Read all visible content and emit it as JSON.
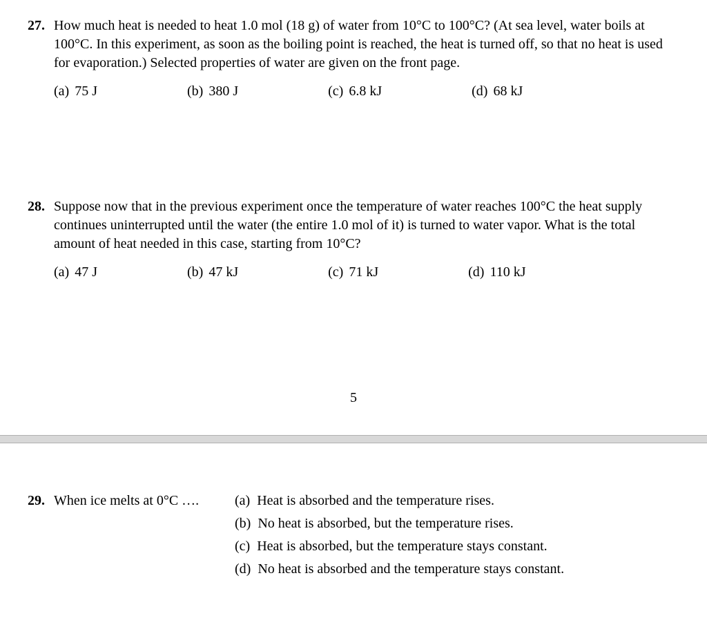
{
  "q27": {
    "number": "27.",
    "text": "How much heat is needed to heat 1.0 mol (18 g) of water from 10°C to 100°C? (At sea level, water boils at 100°C. In this experiment, as soon as the boiling point is reached, the heat is turned off, so that no heat is used for evaporation.) Selected properties of water are given on the front page.",
    "choices": {
      "a_label": "(a)",
      "a_text": "75 J",
      "b_label": "(b)",
      "b_text": "380 J",
      "c_label": "(c)",
      "c_text": "6.8 kJ",
      "d_label": "(d)",
      "d_text": "68 kJ"
    }
  },
  "q28": {
    "number": "28.",
    "text": "Suppose now that in the previous experiment once the temperature of water reaches 100°C the heat supply continues uninterrupted until the water (the entire 1.0 mol of it) is turned to water vapor. What is the total amount of heat needed in this case, starting from 10°C?",
    "choices": {
      "a_label": "(a)",
      "a_text": "47 J",
      "b_label": "(b)",
      "b_text": "47 kJ",
      "c_label": "(c)",
      "c_text": "71 kJ",
      "d_label": "(d)",
      "d_text": "110 kJ"
    }
  },
  "page_number": "5",
  "q29": {
    "number": "29.",
    "stem": "When ice melts at 0°C ….",
    "choices": {
      "a_label": "(a)",
      "a_text": "Heat is absorbed and the temperature rises.",
      "b_label": "(b)",
      "b_text": "No heat is absorbed, but the temperature rises.",
      "c_label": "(c)",
      "c_text": "Heat is absorbed, but the temperature stays constant.",
      "d_label": "(d)",
      "d_text": "No heat is absorbed and the temperature stays constant."
    }
  }
}
